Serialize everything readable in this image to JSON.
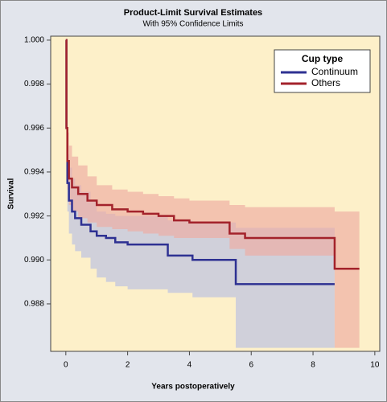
{
  "chart_data": {
    "type": "step",
    "title": "Product-Limit Survival Estimates",
    "subtitle": "With 95% Confidence Limits",
    "x_label": "Years postoperatively",
    "y_label": "Survival",
    "legend_title": "Cup type",
    "legend_position": "top-right",
    "xlim": [
      -0.49,
      10.16
    ],
    "xticks": [
      0,
      2,
      4,
      6,
      8,
      10
    ],
    "ylim": [
      0.98584,
      1.00018
    ],
    "yticks": [
      0.988,
      {
        "value": 0.99,
        "label": "0.990"
      },
      0.992,
      0.994,
      0.996,
      0.998,
      {
        "value": 1,
        "label": "1.000"
      }
    ],
    "series": [
      {
        "name": "Continuum",
        "color": "#2e3192",
        "band_color": "#b9bfe3",
        "x": [
          0,
          0.02,
          0.05,
          0.1,
          0.2,
          0.3,
          0.5,
          0.8,
          1.0,
          1.3,
          1.6,
          2.0,
          3.3,
          4.1,
          5.5,
          8.7
        ],
        "values": [
          1.0,
          0.996,
          0.9935,
          0.9927,
          0.9922,
          0.9919,
          0.9916,
          0.9913,
          0.9911,
          0.991,
          0.9908,
          0.9907,
          0.9902,
          0.99,
          0.9889,
          0.9889
        ],
        "upper": [
          1.0,
          0.9968,
          0.9948,
          0.9942,
          0.9937,
          0.9934,
          0.9931,
          0.9927,
          0.9922,
          0.9921,
          0.992,
          0.992,
          0.9918,
          0.9917,
          0.99146,
          0.99146
        ],
        "lower": [
          1.0,
          0.9952,
          0.9922,
          0.9912,
          0.9907,
          0.9904,
          0.9901,
          0.9896,
          0.9892,
          0.989,
          0.9888,
          0.98866,
          0.9885,
          0.9883,
          0.986,
          0.986
        ]
      },
      {
        "name": "Others",
        "color": "#a3222b",
        "band_color": "#eeaaa2",
        "x": [
          0,
          0.02,
          0.05,
          0.1,
          0.2,
          0.4,
          0.7,
          1.0,
          1.5,
          2.0,
          2.5,
          3.0,
          3.5,
          4.0,
          5.3,
          5.8,
          8.7,
          9.5
        ],
        "values": [
          1.0,
          0.996,
          0.9945,
          0.9937,
          0.9933,
          0.993,
          0.9927,
          0.9925,
          0.9923,
          0.9922,
          0.9921,
          0.992,
          0.9918,
          0.9917,
          0.9912,
          0.991,
          0.9896,
          0.9896
        ],
        "upper": [
          1.0,
          0.997,
          0.9958,
          0.9952,
          0.9947,
          0.9943,
          0.9938,
          0.9934,
          0.9932,
          0.9931,
          0.993,
          0.9929,
          0.9928,
          0.9927,
          0.9925,
          0.9924,
          0.9922,
          0.9922
        ],
        "lower": [
          1.0,
          0.995,
          0.9932,
          0.9925,
          0.9922,
          0.9919,
          0.9917,
          0.9915,
          0.9914,
          0.9913,
          0.9912,
          0.9911,
          0.991,
          0.991,
          0.9905,
          0.9902,
          0.986,
          0.986
        ]
      }
    ]
  }
}
